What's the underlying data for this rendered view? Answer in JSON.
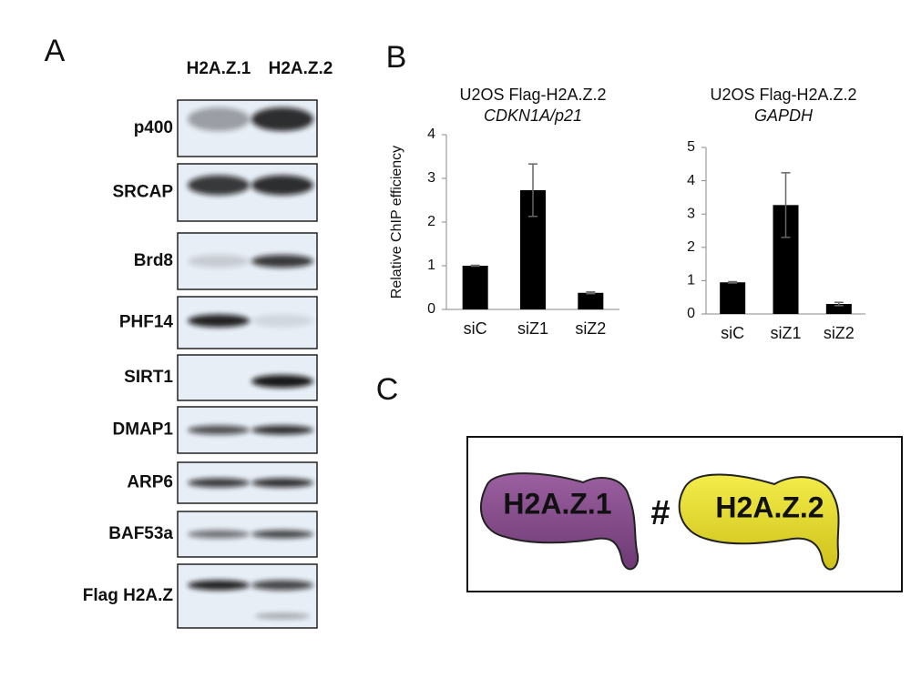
{
  "panel_labels": [
    "A",
    "B",
    "C"
  ],
  "panel_a": {
    "columns": [
      "H2A.Z.1",
      "H2A.Z.2"
    ],
    "rows": [
      "p400",
      "SRCAP",
      "Brd8",
      "PHF14",
      "SIRT1",
      "DMAP1",
      "ARP6",
      "BAF53a",
      "Flag H2A.Z"
    ]
  },
  "panel_c": {
    "left": "H2A.Z.1",
    "symbol": "#",
    "right": "H2A.Z.2"
  },
  "chart_data": [
    {
      "type": "bar",
      "title": "U2OS Flag-H2A.Z.2",
      "subtitle": "CDKN1A/p21",
      "y_label": "Relative ChIP efficiency",
      "categories": [
        "siC",
        "siZ1",
        "siZ2"
      ],
      "values": [
        1.0,
        2.73,
        0.38
      ],
      "errors": [
        0.01,
        0.6,
        0.02
      ],
      "color": "#000000",
      "ylim": [
        0,
        4
      ],
      "yticks": [
        0,
        1,
        2,
        3,
        4
      ]
    },
    {
      "type": "bar",
      "title": "U2OS Flag-H2A.Z.2",
      "subtitle": "GAPDH",
      "categories": [
        "siC",
        "siZ1",
        "siZ2"
      ],
      "values": [
        0.95,
        3.27,
        0.3
      ],
      "errors": [
        0.02,
        0.97,
        0.05
      ],
      "color": "#000000",
      "ylim": [
        0,
        5
      ],
      "yticks": [
        0,
        1,
        2,
        3,
        4,
        5
      ]
    }
  ]
}
